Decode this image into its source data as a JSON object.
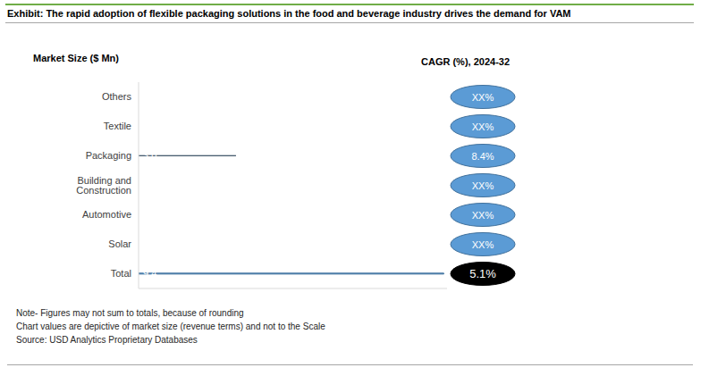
{
  "chart_data": {
    "type": "bar",
    "orientation": "horizontal",
    "title": "Exhibit: The rapid adoption of flexible packaging solutions in the food and beverage industry drives the demand for VAM",
    "x_label": "Market Size ($ Mn)",
    "cagr_title": "CAGR (%), 2024-32",
    "categories": [
      "Others",
      "Textile",
      "Packaging",
      "Building and Construction",
      "Automotive",
      "Solar",
      "Total"
    ],
    "values": [
      null,
      null,
      3.0,
      null,
      null,
      null,
      9.4
    ],
    "value_labels": [
      null,
      null,
      "3.0",
      null,
      null,
      null,
      "9.4"
    ],
    "cagr_labels": [
      "XX%",
      "XX%",
      "8.4%",
      "XX%",
      "XX%",
      "XX%",
      "5.1%"
    ],
    "colors": [
      "#5b9bd5",
      "#5b9bd5",
      "#0e2841",
      "#5b9bd5",
      "#5b9bd5",
      "#5b9bd5",
      "#5b9bd5"
    ],
    "xlim": [
      0,
      9.5
    ],
    "data_labels": true,
    "tick_labels": "y",
    "grid": false,
    "notes": [
      "Note- Figures may not sum to totals, because of rounding",
      "Chart values are depictive of market size (revenue terms) and not to the Scale",
      "Source: USD Analytics Proprietary Databases"
    ]
  }
}
